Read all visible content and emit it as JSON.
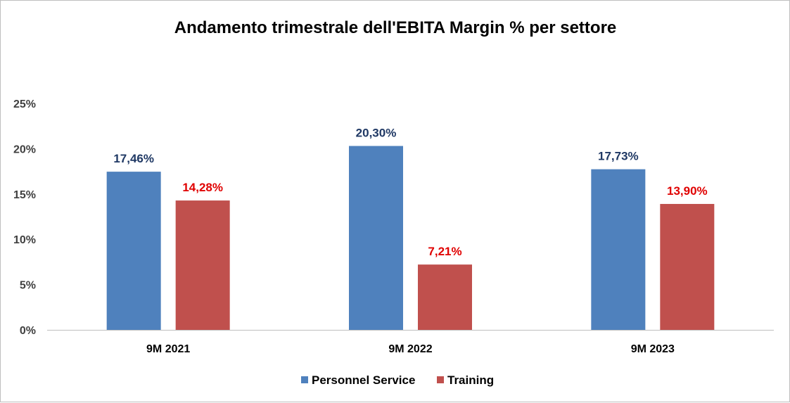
{
  "chart_data": {
    "type": "bar",
    "title": "Andamento trimestrale dell'EBITA Margin % per settore",
    "categories": [
      "9M 2021",
      "9M 2022",
      "9M 2023"
    ],
    "series": [
      {
        "name": "Personnel Service",
        "color": "#4f81bd",
        "label_color": "#1f3864",
        "values": [
          17.46,
          20.3,
          17.73
        ],
        "labels": [
          "17,46%",
          "20,30%",
          "17,73%"
        ]
      },
      {
        "name": "Training",
        "color": "#c0504d",
        "label_color": "#e00000",
        "values": [
          14.28,
          7.21,
          13.9
        ],
        "labels": [
          "14,28%",
          "7,21%",
          "13,90%"
        ]
      }
    ],
    "ylim": [
      0,
      25
    ],
    "yticks": [
      0,
      5,
      10,
      15,
      20,
      25
    ],
    "ytick_labels": [
      "0%",
      "5%",
      "10%",
      "15%",
      "20%",
      "25%"
    ],
    "xlabel": "",
    "ylabel": "",
    "grid": false,
    "legend": "bottom"
  }
}
